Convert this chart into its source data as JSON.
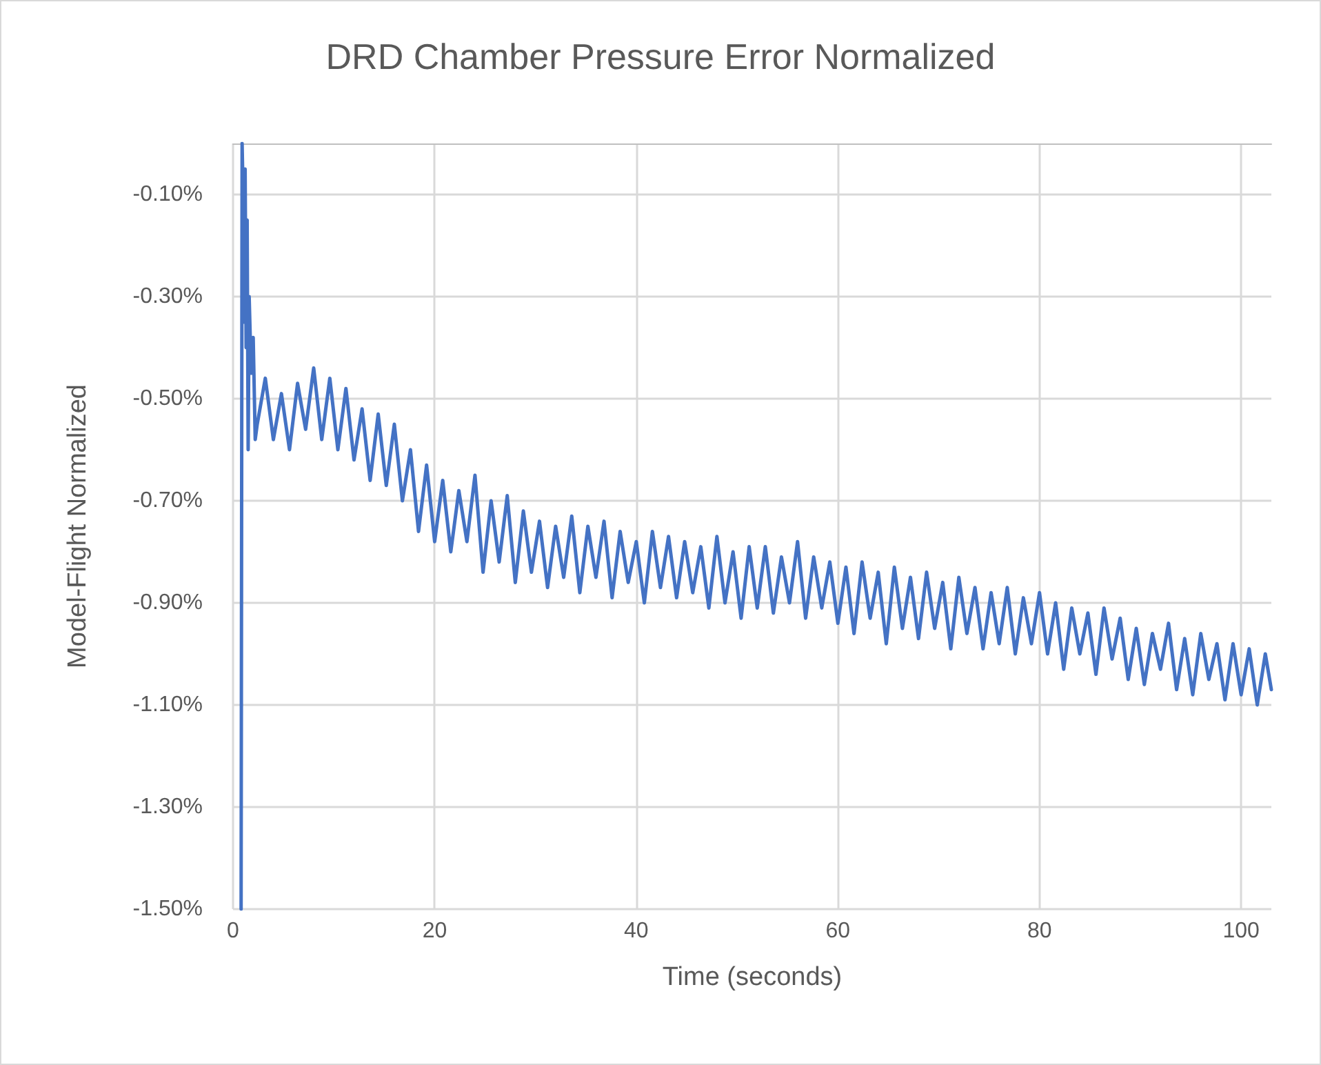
{
  "chart_data": {
    "type": "line",
    "title": "DRD Chamber Pressure Error Normalized",
    "xlabel": "Time (seconds)",
    "ylabel": "Model-Flight Normalized",
    "xlim": [
      0,
      103
    ],
    "xticks": [
      0,
      20,
      40,
      60,
      80,
      100
    ],
    "ylim": [
      -1.5,
      0
    ],
    "yticks": [
      {
        "value": -1.5,
        "label": "-1.50%"
      },
      {
        "value": -1.3,
        "label": "-1.30%"
      },
      {
        "value": -1.1,
        "label": "-1.10%"
      },
      {
        "value": -0.9,
        "label": "-0.90%"
      },
      {
        "value": -0.7,
        "label": "-0.70%"
      },
      {
        "value": -0.5,
        "label": "-0.50%"
      },
      {
        "value": -0.3,
        "label": "-0.30%"
      },
      {
        "value": -0.1,
        "label": "-0.10%"
      }
    ],
    "grid": true,
    "marker": "none",
    "line_style": "solid",
    "x": [
      0.8,
      0.9,
      1.0,
      1.1,
      1.2,
      1.3,
      1.4,
      1.5,
      1.6,
      1.8,
      2.0,
      2.2,
      2.4,
      3.2,
      4.0,
      4.8,
      5.6,
      6.4,
      7.2,
      8.0,
      8.8,
      9.6,
      10.4,
      11.2,
      12.0,
      12.8,
      13.6,
      14.4,
      15.2,
      16.0,
      16.8,
      17.6,
      18.4,
      19.2,
      20.0,
      20.8,
      21.6,
      22.4,
      23.2,
      24.0,
      24.8,
      25.6,
      26.4,
      27.2,
      28.0,
      28.8,
      29.6,
      30.4,
      31.2,
      32.0,
      32.8,
      33.6,
      34.4,
      35.2,
      36.0,
      36.8,
      37.6,
      38.4,
      39.2,
      40.0,
      40.8,
      41.6,
      42.4,
      43.2,
      44.0,
      44.8,
      45.6,
      46.4,
      47.2,
      48.0,
      48.8,
      49.6,
      50.4,
      51.2,
      52.0,
      52.8,
      53.6,
      54.4,
      55.2,
      56.0,
      56.8,
      57.6,
      58.4,
      59.2,
      60.0,
      60.8,
      61.6,
      62.4,
      63.2,
      64.0,
      64.8,
      65.6,
      66.4,
      67.2,
      68.0,
      68.8,
      69.6,
      70.4,
      71.2,
      72.0,
      72.8,
      73.6,
      74.4,
      75.2,
      76.0,
      76.8,
      77.6,
      78.4,
      79.2,
      80.0,
      80.8,
      81.6,
      82.4,
      83.2,
      84.0,
      84.8,
      85.6,
      86.4,
      87.2,
      88.0,
      88.8,
      89.6,
      90.4,
      91.2,
      92.0,
      92.8,
      93.6,
      94.4,
      95.2,
      96.0,
      96.8,
      97.6,
      98.4,
      99.2,
      100.0,
      100.8,
      101.6,
      102.4,
      103.0
    ],
    "series": [
      {
        "color": "#4472c4",
        "values": [
          -1.5,
          0,
          -0.1,
          -0.35,
          -0.05,
          -0.4,
          -0.15,
          -0.6,
          -0.3,
          -0.45,
          -0.38,
          -0.58,
          -0.55,
          -0.46,
          -0.58,
          -0.49,
          -0.6,
          -0.47,
          -0.56,
          -0.44,
          -0.58,
          -0.46,
          -0.6,
          -0.48,
          -0.62,
          -0.52,
          -0.66,
          -0.53,
          -0.67,
          -0.55,
          -0.7,
          -0.6,
          -0.76,
          -0.63,
          -0.78,
          -0.66,
          -0.8,
          -0.68,
          -0.78,
          -0.65,
          -0.84,
          -0.7,
          -0.82,
          -0.69,
          -0.86,
          -0.72,
          -0.84,
          -0.74,
          -0.87,
          -0.75,
          -0.85,
          -0.73,
          -0.88,
          -0.75,
          -0.85,
          -0.74,
          -0.89,
          -0.76,
          -0.86,
          -0.78,
          -0.9,
          -0.76,
          -0.87,
          -0.77,
          -0.89,
          -0.78,
          -0.88,
          -0.79,
          -0.91,
          -0.77,
          -0.9,
          -0.8,
          -0.93,
          -0.79,
          -0.91,
          -0.79,
          -0.92,
          -0.81,
          -0.9,
          -0.78,
          -0.93,
          -0.81,
          -0.91,
          -0.82,
          -0.94,
          -0.83,
          -0.96,
          -0.82,
          -0.93,
          -0.84,
          -0.98,
          -0.83,
          -0.95,
          -0.85,
          -0.97,
          -0.84,
          -0.95,
          -0.86,
          -0.99,
          -0.85,
          -0.96,
          -0.87,
          -0.99,
          -0.88,
          -0.98,
          -0.87,
          -1.0,
          -0.89,
          -0.98,
          -0.88,
          -1.0,
          -0.9,
          -1.03,
          -0.91,
          -1.0,
          -0.92,
          -1.04,
          -0.91,
          -1.01,
          -0.93,
          -1.05,
          -0.95,
          -1.06,
          -0.96,
          -1.03,
          -0.94,
          -1.07,
          -0.97,
          -1.08,
          -0.96,
          -1.05,
          -0.98,
          -1.09,
          -0.98,
          -1.08,
          -0.99,
          -1.1,
          -1.0,
          -1.07
        ]
      }
    ]
  }
}
